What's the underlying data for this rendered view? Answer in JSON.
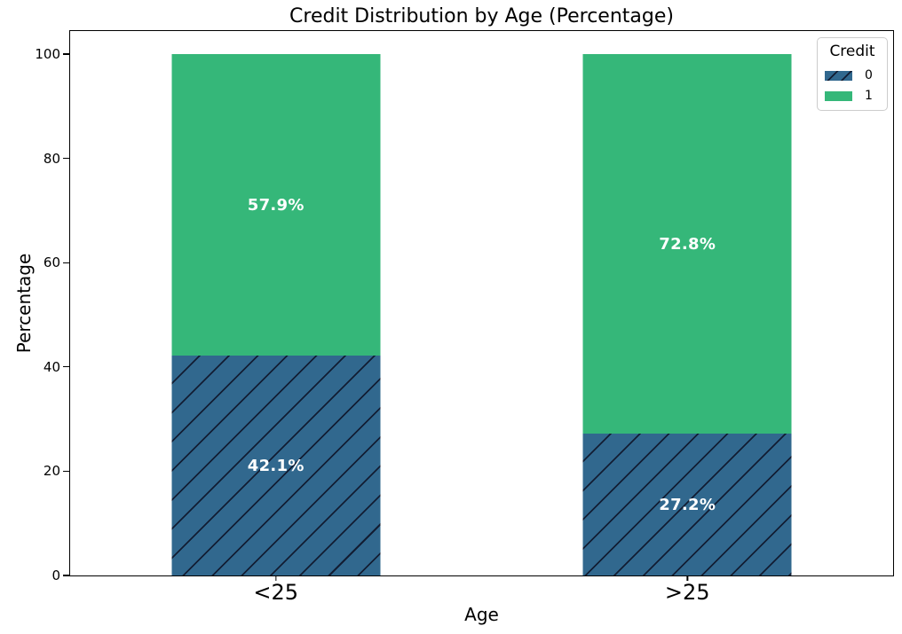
{
  "chart_data": {
    "type": "bar",
    "stacked": true,
    "title": "Credit Distribution by Age (Percentage)",
    "xlabel": "Age",
    "ylabel": "Percentage",
    "categories": [
      "<25",
      ">25"
    ],
    "series": [
      {
        "name": "0",
        "values": [
          42.1,
          27.2
        ],
        "labels": [
          "42.1%",
          "27.2%"
        ],
        "color": "#31688e",
        "hatch": "//"
      },
      {
        "name": "1",
        "values": [
          57.9,
          72.8
        ],
        "labels": [
          "57.9%",
          "72.8%"
        ],
        "color": "#35b779",
        "hatch": ""
      }
    ],
    "ylim": [
      0,
      100
    ],
    "yticks": [
      0,
      20,
      40,
      60,
      80,
      100
    ],
    "legend": {
      "title": "Credit",
      "entries": [
        "0",
        "1"
      ],
      "position": "upper right"
    },
    "grid": false,
    "bar_label_color": "#ffffff",
    "hatch_color": "#121d33",
    "spine_color": "#000000"
  }
}
